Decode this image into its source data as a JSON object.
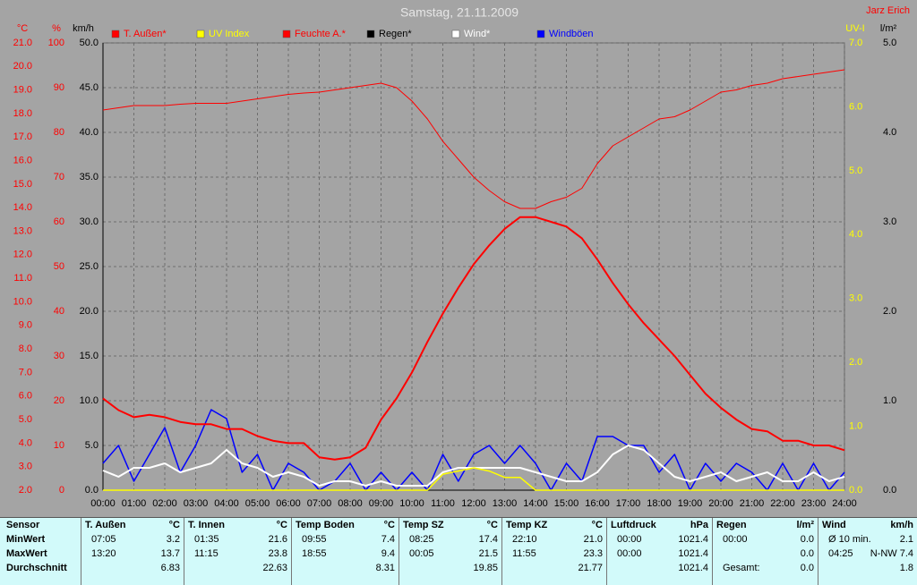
{
  "chart_data": {
    "type": "line",
    "title": "Samstag, 21.11.2009",
    "annotation": "Jarz Erich",
    "x": [
      0,
      0.5,
      1,
      1.5,
      2,
      2.5,
      3,
      3.5,
      4,
      4.5,
      5,
      5.5,
      6,
      6.5,
      7,
      7.5,
      8,
      8.5,
      9,
      9.5,
      10,
      10.5,
      11,
      11.5,
      12,
      12.5,
      13,
      13.5,
      14,
      14.5,
      15,
      15.5,
      16,
      16.5,
      17,
      17.5,
      18,
      18.5,
      19,
      19.5,
      20,
      20.5,
      21,
      21.5,
      22,
      22.5,
      23,
      23.5,
      24
    ],
    "xlim": [
      0,
      24
    ],
    "xticks": [
      {
        "value": 0,
        "label": "00:00"
      },
      {
        "value": 1,
        "label": "01:00"
      },
      {
        "value": 2,
        "label": "02:00"
      },
      {
        "value": 3,
        "label": "03:00"
      },
      {
        "value": 4,
        "label": "04:00"
      },
      {
        "value": 5,
        "label": "05:00"
      },
      {
        "value": 6,
        "label": "06:00"
      },
      {
        "value": 7,
        "label": "07:00"
      },
      {
        "value": 8,
        "label": "08:00"
      },
      {
        "value": 9,
        "label": "09:00"
      },
      {
        "value": 10,
        "label": "10:00"
      },
      {
        "value": 11,
        "label": "11:00"
      },
      {
        "value": 12,
        "label": "12:00"
      },
      {
        "value": 13,
        "label": "13:00"
      },
      {
        "value": 14,
        "label": "14:00"
      },
      {
        "value": 15,
        "label": "15:00"
      },
      {
        "value": 16,
        "label": "16:00"
      },
      {
        "value": 17,
        "label": "17:00"
      },
      {
        "value": 18,
        "label": "18:00"
      },
      {
        "value": 19,
        "label": "19:00"
      },
      {
        "value": 20,
        "label": "20:00"
      },
      {
        "value": 21,
        "label": "21:00"
      },
      {
        "value": 22,
        "label": "22:00"
      },
      {
        "value": 23,
        "label": "23:00"
      },
      {
        "value": 24,
        "label": "24:00"
      }
    ],
    "grid": true,
    "axes": [
      {
        "unit": "°C",
        "color": "#ff0000",
        "ylim": [
          2,
          21
        ],
        "yticks": [
          {
            "value": 2,
            "label": "2.0"
          },
          {
            "value": 3,
            "label": "3.0"
          },
          {
            "value": 4,
            "label": "4.0"
          },
          {
            "value": 5,
            "label": "5.0"
          },
          {
            "value": 6,
            "label": "6.0"
          },
          {
            "value": 7,
            "label": "7.0"
          },
          {
            "value": 8,
            "label": "8.0"
          },
          {
            "value": 9,
            "label": "9.0"
          },
          {
            "value": 10,
            "label": "10.0"
          },
          {
            "value": 11,
            "label": "11.0"
          },
          {
            "value": 12,
            "label": "12.0"
          },
          {
            "value": 13,
            "label": "13.0"
          },
          {
            "value": 14,
            "label": "14.0"
          },
          {
            "value": 15,
            "label": "15.0"
          },
          {
            "value": 16,
            "label": "16.0"
          },
          {
            "value": 17,
            "label": "17.0"
          },
          {
            "value": 18,
            "label": "18.0"
          },
          {
            "value": 19,
            "label": "19.0"
          },
          {
            "value": 20,
            "label": "20.0"
          },
          {
            "value": 21,
            "label": "21.0"
          }
        ]
      },
      {
        "unit": "%",
        "color": "#ff0000",
        "ylim": [
          0,
          100
        ],
        "yticks": [
          0,
          10,
          20,
          30,
          40,
          50,
          60,
          70,
          80,
          90,
          100
        ]
      },
      {
        "unit": "km/h",
        "color": "#000000",
        "ylim": [
          0,
          50
        ],
        "yticks": [
          {
            "value": 0,
            "label": "0.0"
          },
          {
            "value": 5,
            "label": "5.0"
          },
          {
            "value": 10,
            "label": "10.0"
          },
          {
            "value": 15,
            "label": "15.0"
          },
          {
            "value": 20,
            "label": "20.0"
          },
          {
            "value": 25,
            "label": "25.0"
          },
          {
            "value": 30,
            "label": "30.0"
          },
          {
            "value": 35,
            "label": "35.0"
          },
          {
            "value": 40,
            "label": "40.0"
          },
          {
            "value": 45,
            "label": "45.0"
          },
          {
            "value": 50,
            "label": "50.0"
          }
        ]
      },
      {
        "unit": "UV-I",
        "color": "#ffff00",
        "ylim": [
          0,
          7
        ],
        "yticks": [
          {
            "value": 0,
            "label": "0.0"
          },
          {
            "value": 1,
            "label": "1.0"
          },
          {
            "value": 2,
            "label": "2.0"
          },
          {
            "value": 3,
            "label": "3.0"
          },
          {
            "value": 4,
            "label": "4.0"
          },
          {
            "value": 5,
            "label": "5.0"
          },
          {
            "value": 6,
            "label": "6.0"
          },
          {
            "value": 7,
            "label": "7.0"
          }
        ]
      },
      {
        "unit": "l/m²",
        "color": "#000000",
        "ylim": [
          0,
          5
        ],
        "yticks": [
          {
            "value": 0,
            "label": "0.0"
          },
          {
            "value": 1,
            "label": "1.0"
          },
          {
            "value": 2,
            "label": "2.0"
          },
          {
            "value": 3,
            "label": "3.0"
          },
          {
            "value": 4,
            "label": "4.0"
          },
          {
            "value": 5,
            "label": "5.0"
          }
        ]
      }
    ],
    "series": [
      {
        "name": "T. Außen*",
        "color": "#ff0000",
        "axis": 0,
        "values": [
          5.9,
          5.4,
          5.1,
          5.2,
          5.1,
          4.9,
          4.8,
          4.8,
          4.6,
          4.6,
          4.3,
          4.1,
          4.0,
          4.0,
          3.4,
          3.3,
          3.4,
          3.8,
          5.0,
          5.9,
          7.0,
          8.3,
          9.5,
          10.6,
          11.6,
          12.4,
          13.1,
          13.6,
          13.6,
          13.4,
          13.2,
          12.7,
          11.8,
          10.8,
          9.9,
          9.1,
          8.4,
          7.7,
          6.9,
          6.1,
          5.5,
          5.0,
          4.6,
          4.5,
          4.1,
          4.1,
          3.9,
          3.9,
          3.7
        ]
      },
      {
        "name": "UV Index",
        "color": "#ffff00",
        "axis": 3,
        "values": [
          0,
          0,
          0,
          0,
          0,
          0,
          0,
          0,
          0,
          0,
          0,
          0,
          0,
          0,
          0,
          0,
          0,
          0,
          0,
          0,
          0,
          0,
          0.25,
          0.3,
          0.35,
          0.3,
          0.2,
          0.2,
          0,
          0,
          0,
          0,
          0,
          0,
          0,
          0,
          0,
          0,
          0,
          0,
          0,
          0,
          0,
          0,
          0,
          0,
          0,
          0,
          0
        ]
      },
      {
        "name": "Feuchte A.*",
        "color": "#ff0000",
        "axis": 1,
        "values": [
          85,
          85.5,
          86,
          86,
          86,
          86.3,
          86.5,
          86.5,
          86.5,
          87,
          87.5,
          88,
          88.5,
          88.8,
          89,
          89.5,
          90,
          90.5,
          91,
          90,
          87,
          83,
          78,
          74,
          70,
          67,
          64.5,
          63,
          63,
          64.5,
          65.5,
          67.5,
          73,
          77,
          79,
          81,
          83,
          83.5,
          85,
          87,
          89,
          89.5,
          90.5,
          91,
          92,
          92.5,
          93,
          93.5,
          94
        ]
      },
      {
        "name": "Regen*",
        "color": "#000000",
        "axis": 4,
        "values": [
          0,
          0,
          0,
          0,
          0,
          0,
          0,
          0,
          0,
          0,
          0,
          0,
          0,
          0,
          0,
          0,
          0,
          0,
          0,
          0,
          0,
          0,
          0,
          0,
          0,
          0,
          0,
          0,
          0,
          0,
          0,
          0,
          0,
          0,
          0,
          0,
          0,
          0,
          0,
          0,
          0,
          0,
          0,
          0,
          0,
          0,
          0,
          0,
          0
        ]
      },
      {
        "name": "Wind*",
        "color": "#ffffff",
        "axis": 2,
        "values": [
          2.2,
          1.5,
          2.5,
          2.5,
          3,
          2,
          2.5,
          3,
          4.5,
          3,
          2.5,
          1.5,
          2,
          1.5,
          0.5,
          1,
          1,
          0.5,
          1,
          0.5,
          0.5,
          0.5,
          2,
          2.5,
          2.5,
          2.5,
          2.5,
          2.5,
          2,
          1.5,
          1,
          1,
          2,
          4,
          5,
          4.5,
          3,
          1.5,
          1,
          1.5,
          2,
          1,
          1.5,
          2,
          1,
          1,
          2,
          1,
          1.5
        ]
      },
      {
        "name": "Windböen",
        "color": "#0000ff",
        "axis": 2,
        "values": [
          3,
          5,
          1,
          4,
          7,
          2,
          5,
          9,
          8,
          2,
          4,
          0,
          3,
          2,
          0,
          1,
          3,
          0,
          2,
          0,
          2,
          0,
          4,
          1,
          4,
          5,
          3,
          5,
          3,
          0,
          3,
          1,
          6,
          6,
          5,
          5,
          2,
          4,
          0,
          3,
          1,
          3,
          2,
          0,
          3,
          0,
          3,
          0,
          2
        ]
      }
    ]
  },
  "table": {
    "sensor_labels": [
      "Sensor",
      "MinWert",
      "MaxWert",
      "Durchschnitt"
    ],
    "columns": [
      {
        "name": "T. Außen",
        "unit": "°C",
        "rows": [
          {
            "time": "07:05",
            "value": "3.2"
          },
          {
            "time": "13:20",
            "value": "13.7"
          },
          {
            "value": "6.83"
          }
        ]
      },
      {
        "name": "T. Innen",
        "unit": "°C",
        "rows": [
          {
            "time": "01:35",
            "value": "21.6"
          },
          {
            "time": "11:15",
            "value": "23.8"
          },
          {
            "value": "22.63"
          }
        ]
      },
      {
        "name": "Temp Boden",
        "unit": "°C",
        "rows": [
          {
            "time": "09:55",
            "value": "7.4"
          },
          {
            "time": "18:55",
            "value": "9.4"
          },
          {
            "value": "8.31"
          }
        ]
      },
      {
        "name": "Temp SZ",
        "unit": "°C",
        "rows": [
          {
            "time": "08:25",
            "value": "17.4"
          },
          {
            "time": "00:05",
            "value": "21.5"
          },
          {
            "value": "19.85"
          }
        ]
      },
      {
        "name": "Temp KZ",
        "unit": "°C",
        "rows": [
          {
            "time": "22:10",
            "value": "21.0"
          },
          {
            "time": "11:55",
            "value": "23.3"
          },
          {
            "value": "21.77"
          }
        ]
      },
      {
        "name": "Luftdruck",
        "unit": "hPa",
        "rows": [
          {
            "time": "00:00",
            "value": "1021.4"
          },
          {
            "time": "00:00",
            "value": "1021.4"
          },
          {
            "value": "1021.4"
          }
        ]
      },
      {
        "name": "Regen",
        "unit": "l/m²",
        "rows": [
          {
            "time": "00:00",
            "value": "0.0"
          },
          {
            "value": "0.0"
          },
          {
            "time": "Gesamt:",
            "value": "0.0"
          }
        ]
      },
      {
        "name": "Wind",
        "unit": "km/h",
        "rows": [
          {
            "time": "Ø 10 min.",
            "value": "2.1"
          },
          {
            "time": "04:25",
            "value": "N-NW 7.4"
          },
          {
            "value": "1.8"
          }
        ]
      }
    ]
  }
}
